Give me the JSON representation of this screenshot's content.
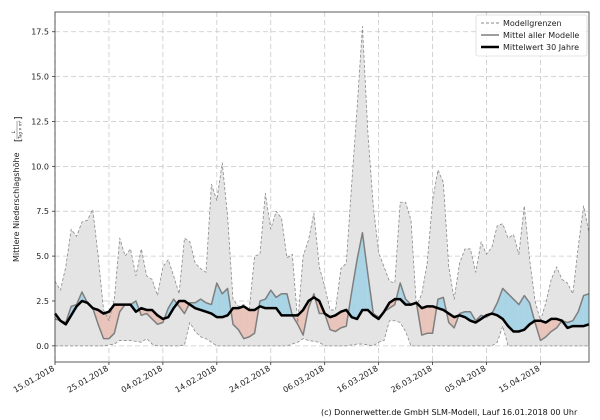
{
  "chart_data": {
    "type": "area",
    "title": "",
    "ylabel": "Mittlere Niederschlagshöhe",
    "yunit_numerator": "L",
    "yunit_denominator": "Tag × m²",
    "xlabel": "",
    "ylim": [
      -0.9,
      18.6
    ],
    "yticks": [
      "0.0",
      "2.5",
      "5.0",
      "7.5",
      "10.0",
      "12.5",
      "15.0",
      "17.5"
    ],
    "xticks": [
      "15.01.2018",
      "25.01.2018",
      "04.02.2018",
      "14.02.2018",
      "24.02.2018",
      "06.03.2018",
      "16.03.2018",
      "26.03.2018",
      "05.04.2018",
      "15.04.2018"
    ],
    "grid": true,
    "legend_position": "top-right",
    "legend": [
      "Modellgrenzen",
      "Mittel aller Modelle",
      "Mittelwert 30 Jahre"
    ],
    "colors": {
      "band": "#e4e4e4",
      "bound_line": "#8a8a8a",
      "above": "#a8d4e6",
      "below": "#e8c4ba",
      "model_mean": "#7f7f7f",
      "climate": "#000000"
    },
    "x": [
      "15.01.2018",
      "16.01.2018",
      "17.01.2018",
      "18.01.2018",
      "19.01.2018",
      "20.01.2018",
      "21.01.2018",
      "22.01.2018",
      "23.01.2018",
      "24.01.2018",
      "25.01.2018",
      "26.01.2018",
      "27.01.2018",
      "28.01.2018",
      "29.01.2018",
      "30.01.2018",
      "31.01.2018",
      "01.02.2018",
      "02.02.2018",
      "03.02.2018",
      "04.02.2018",
      "05.02.2018",
      "06.02.2018",
      "07.02.2018",
      "08.02.2018",
      "09.02.2018",
      "10.02.2018",
      "11.02.2018",
      "12.02.2018",
      "13.02.2018",
      "14.02.2018",
      "15.02.2018",
      "16.02.2018",
      "17.02.2018",
      "18.02.2018",
      "19.02.2018",
      "20.02.2018",
      "21.02.2018",
      "22.02.2018",
      "23.02.2018",
      "24.02.2018",
      "25.02.2018",
      "26.02.2018",
      "27.02.2018",
      "28.02.2018",
      "01.03.2018",
      "02.03.2018",
      "03.03.2018",
      "04.03.2018",
      "05.03.2018",
      "06.03.2018",
      "07.03.2018",
      "08.03.2018",
      "09.03.2018",
      "10.03.2018",
      "11.03.2018",
      "12.03.2018",
      "13.03.2018",
      "14.03.2018",
      "15.03.2018",
      "16.03.2018",
      "17.03.2018",
      "18.03.2018",
      "19.03.2018",
      "20.03.2018",
      "21.03.2018",
      "22.03.2018",
      "23.03.2018",
      "24.03.2018",
      "25.03.2018",
      "26.03.2018",
      "27.03.2018",
      "28.03.2018",
      "29.03.2018",
      "30.03.2018",
      "31.03.2018",
      "01.04.2018",
      "02.04.2018",
      "03.04.2018",
      "04.04.2018",
      "05.04.2018",
      "06.04.2018",
      "07.04.2018",
      "08.04.2018",
      "09.04.2018",
      "10.04.2018",
      "11.04.2018",
      "12.04.2018",
      "13.04.2018",
      "14.04.2018",
      "15.04.2018",
      "16.04.2018",
      "17.04.2018",
      "18.04.2018",
      "19.04.2018",
      "20.04.2018",
      "21.04.2018",
      "22.04.2018",
      "23.04.2018",
      "24.04.2018"
    ],
    "series": [
      {
        "name": "Modellgrenzen (oben)",
        "values": [
          3.6,
          3.1,
          4.4,
          6.5,
          6.1,
          6.9,
          7.0,
          7.6,
          5.0,
          2.0,
          1.4,
          2.6,
          6.0,
          5.0,
          5.4,
          3.9,
          5.4,
          3.9,
          3.7,
          2.8,
          4.4,
          4.8,
          3.9,
          2.9,
          6.0,
          5.8,
          4.6,
          4.3,
          4.1,
          9.0,
          8.1,
          10.2,
          7.2,
          2.6,
          2.2,
          2.3,
          2.0,
          5.0,
          5.1,
          8.5,
          6.5,
          7.5,
          7.1,
          4.9,
          5.1,
          1.3,
          5.0,
          5.9,
          7.4,
          4.4,
          3.3,
          2.0,
          2.0,
          4.3,
          4.6,
          9.0,
          13.2,
          17.8,
          11.9,
          7.8,
          5.2,
          4.4,
          3.6,
          3.5,
          8.0,
          8.0,
          7.0,
          2.2,
          2.9,
          4.6,
          8.1,
          9.8,
          9.1,
          4.4,
          2.6,
          4.6,
          5.4,
          5.4,
          4.1,
          5.8,
          5.1,
          5.5,
          6.7,
          6.8,
          6.0,
          6.2,
          5.1,
          7.8,
          4.8,
          2.5,
          1.4,
          2.4,
          3.7,
          4.4,
          3.7,
          3.5,
          2.9,
          5.5,
          7.8,
          6.3
        ]
      },
      {
        "name": "Modellgrenzen (unten)",
        "values": [
          0,
          0,
          0,
          0,
          0,
          0,
          0,
          0,
          0,
          0,
          0.05,
          0.1,
          0.3,
          0.3,
          0.3,
          0.25,
          0.2,
          0.4,
          0.1,
          0,
          0,
          0,
          0,
          0,
          0.05,
          1.3,
          0.8,
          0.5,
          0.4,
          0.2,
          0,
          0,
          0,
          0,
          0,
          0,
          0,
          0,
          0,
          0,
          0,
          0,
          0,
          0,
          0.1,
          0.2,
          0.4,
          0.3,
          0.25,
          0.2,
          0,
          0,
          0,
          0,
          0,
          0.05,
          0.1,
          0.1,
          0.05,
          0,
          0.2,
          0.3,
          1.4,
          1.4,
          1.3,
          0.8,
          0,
          0,
          0,
          0,
          0,
          0,
          0,
          0,
          0,
          0,
          0,
          0,
          0,
          0,
          0,
          0,
          0.2,
          1.1,
          0,
          0,
          0,
          0,
          0,
          0,
          0,
          0,
          0,
          0,
          0,
          0,
          0,
          0,
          0,
          0
        ]
      },
      {
        "name": "Mittel aller Modelle",
        "values": [
          1.5,
          1.4,
          1.3,
          2.2,
          2.3,
          3.0,
          2.4,
          2.1,
          1.2,
          0.4,
          0.4,
          0.7,
          1.9,
          2.3,
          2.3,
          2.5,
          1.7,
          1.8,
          1.5,
          1.2,
          1.3,
          2.1,
          2.6,
          2.2,
          1.8,
          2.4,
          2.4,
          2.6,
          2.4,
          2.3,
          3.5,
          2.9,
          3.2,
          1.2,
          0.9,
          0.4,
          0.5,
          0.7,
          2.5,
          2.6,
          3.1,
          2.7,
          2.9,
          2.9,
          1.7,
          1.2,
          0.6,
          2.1,
          2.9,
          1.8,
          1.8,
          0.9,
          0.8,
          1.0,
          1.1,
          3.0,
          4.8,
          6.3,
          4.0,
          1.8,
          1.6,
          1.9,
          2.1,
          2.3,
          3.5,
          2.6,
          2.3,
          2.4,
          0.6,
          0.7,
          0.7,
          2.6,
          2.7,
          1.3,
          1.0,
          1.8,
          1.9,
          1.9,
          1.4,
          1.7,
          1.6,
          1.8,
          2.4,
          3.2,
          2.9,
          2.6,
          2.3,
          2.8,
          2.4,
          1.3,
          0.3,
          0.5,
          0.8,
          1.0,
          1.4,
          1.3,
          1.4,
          1.9,
          2.8,
          2.9
        ]
      },
      {
        "name": "Mittelwert 30 Jahre",
        "values": [
          1.8,
          1.4,
          1.2,
          1.7,
          2.2,
          2.5,
          2.4,
          2.1,
          2.0,
          1.8,
          1.9,
          2.3,
          2.3,
          2.3,
          2.3,
          1.9,
          2.1,
          2.0,
          2.0,
          1.7,
          1.5,
          1.6,
          2.1,
          2.5,
          2.5,
          2.3,
          2.1,
          2.0,
          1.9,
          1.8,
          1.6,
          1.6,
          1.7,
          2.1,
          2.1,
          2.2,
          2.0,
          2.0,
          2.2,
          2.1,
          2.1,
          2.1,
          1.7,
          1.7,
          1.7,
          1.7,
          2.0,
          2.5,
          2.7,
          2.5,
          1.8,
          1.6,
          1.7,
          1.9,
          2.0,
          1.6,
          1.5,
          2.0,
          2.0,
          1.7,
          1.5,
          1.9,
          2.4,
          2.6,
          2.6,
          2.3,
          2.3,
          2.4,
          2.1,
          2.2,
          2.2,
          2.1,
          2.0,
          1.8,
          1.6,
          1.7,
          1.6,
          1.4,
          1.3,
          1.5,
          1.7,
          1.8,
          1.7,
          1.5,
          1.1,
          0.8,
          0.8,
          0.9,
          1.2,
          1.4,
          1.4,
          1.3,
          1.5,
          1.5,
          1.4,
          1.0,
          1.1,
          1.1,
          1.1,
          1.2
        ]
      }
    ]
  },
  "footer": "(c) Donnerwetter.de GmbH SLM-Modell, Lauf 16.01.2018 00 Uhr"
}
